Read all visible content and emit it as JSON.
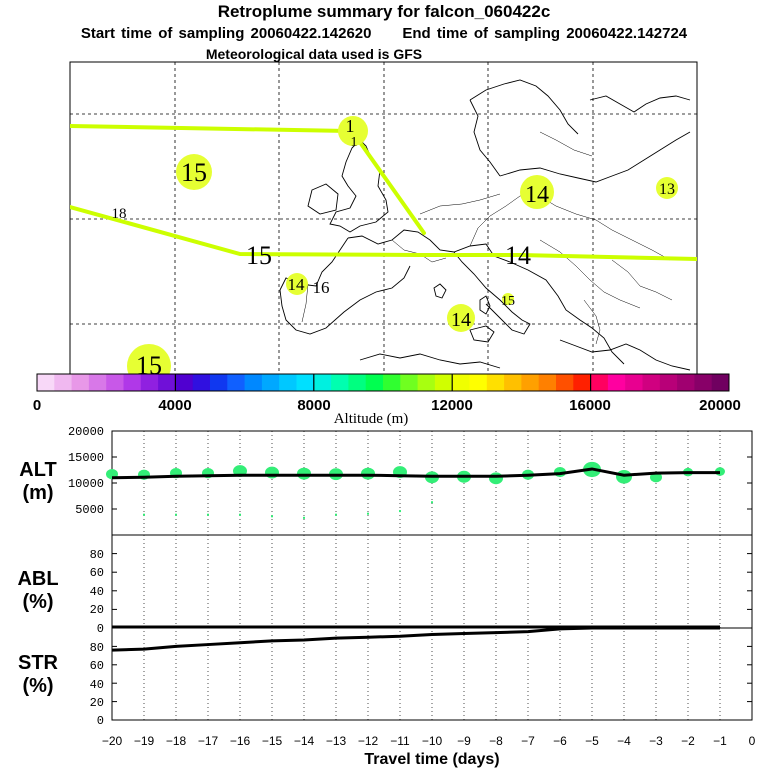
{
  "header": {
    "title": "Retroplume summary for falcon_060422c",
    "start_label": "Start time of sampling 20060422.142620",
    "end_label": "End time of sampling 20060422.142724",
    "met_label": "Meteorological data used is GFS"
  },
  "colors": {
    "plume": "#ccff00",
    "plume_dot": "#e6ff33",
    "alt_dot": "#33ee77",
    "line": "#000000"
  },
  "chart_data": [
    {
      "type": "map",
      "name": "retroplume-map",
      "region": "North Atlantic / Europe",
      "path_labels": [
        "15",
        "18",
        "15",
        "14",
        "14",
        "14",
        "16",
        "15",
        "14",
        "14",
        "13",
        "15",
        "1",
        "1"
      ],
      "colorbar": {
        "title": "Altitude (m)",
        "min": 0,
        "max": 20000,
        "tick_labels": [
          "0",
          "4000",
          "8000",
          "12000",
          "16000",
          "20000"
        ],
        "colors": [
          "#f8d8f8",
          "#f0b8f0",
          "#e898e8",
          "#d878e8",
          "#c858e8",
          "#b038e8",
          "#9020e0",
          "#7010d8",
          "#5000d0",
          "#3010e0",
          "#1038f0",
          "#1060ff",
          "#0088ff",
          "#00a8ff",
          "#00c8ff",
          "#00e0ff",
          "#00f0e0",
          "#00ffb0",
          "#00ff80",
          "#00ff50",
          "#30ff30",
          "#70ff20",
          "#a8ff10",
          "#d0ff00",
          "#f0ff00",
          "#ffff00",
          "#ffe000",
          "#ffc000",
          "#ffa000",
          "#ff8000",
          "#ff5000",
          "#ff2000",
          "#ff0060",
          "#ff00a0",
          "#e80090",
          "#d00080",
          "#b80078",
          "#a00070",
          "#880068",
          "#700060"
        ]
      }
    },
    {
      "type": "line+scatter",
      "name": "ALT",
      "ylabel": "ALT (m)",
      "ylim": [
        0,
        20000
      ],
      "yticks": [
        "20000",
        "15000",
        "10000",
        "5000"
      ],
      "x": [
        -20,
        -19,
        -18,
        -17,
        -16,
        -15,
        -14,
        -13,
        -12,
        -11,
        -10,
        -9,
        -8,
        -7,
        -6,
        -5,
        -4,
        -3,
        -2,
        -1
      ],
      "series": [
        {
          "name": "mean altitude",
          "values": [
            11000,
            11100,
            11300,
            11400,
            11500,
            11500,
            11500,
            11500,
            11500,
            11400,
            11300,
            11300,
            11300,
            11500,
            11800,
            12700,
            11500,
            11900,
            12000,
            12000
          ]
        },
        {
          "name": "altitude dots",
          "values": [
            11700,
            11600,
            11900,
            11900,
            12300,
            12000,
            11800,
            11700,
            11800,
            12100,
            11100,
            11200,
            10900,
            11600,
            12100,
            12600,
            11200,
            11100,
            12100,
            12200
          ],
          "sizes": [
            6,
            6,
            6,
            6,
            7,
            7,
            7,
            7,
            7,
            7,
            7,
            7,
            7,
            6,
            6,
            9,
            8,
            6,
            5,
            5
          ]
        },
        {
          "name": "low altitude dots",
          "values": [
            3900,
            3900,
            3900,
            3900,
            3600,
            3300,
            3900,
            4100,
            4600,
            6300
          ],
          "x": [
            -19,
            -18,
            -17,
            -16,
            -15,
            -14,
            -13,
            -12,
            -11,
            -10
          ]
        }
      ]
    },
    {
      "type": "line",
      "name": "ABL",
      "ylabel": "ABL (%)",
      "ylim": [
        0,
        95
      ],
      "yticks": [
        "80",
        "60",
        "40",
        "20",
        "0"
      ],
      "x": [
        -20,
        -19,
        -18,
        -17,
        -16,
        -15,
        -14,
        -13,
        -12,
        -11,
        -10,
        -9,
        -8,
        -7,
        -6,
        -5,
        -4,
        -3,
        -2,
        -1
      ],
      "values": [
        0,
        0,
        0,
        0,
        0,
        0,
        0,
        0,
        0,
        0,
        0,
        0,
        0,
        0,
        0,
        0,
        0,
        0,
        0,
        0
      ]
    },
    {
      "type": "line",
      "name": "STR",
      "ylabel": "STR (%)",
      "ylim": [
        0,
        95
      ],
      "yticks": [
        "80",
        "60",
        "40",
        "20",
        "0"
      ],
      "x": [
        -20,
        -19,
        -18,
        -17,
        -16,
        -15,
        -14,
        -13,
        -12,
        -11,
        -10,
        -9,
        -8,
        -7,
        -6,
        -5,
        -4,
        -3,
        -2,
        -1
      ],
      "values": [
        76,
        77,
        80,
        82,
        84,
        86,
        87,
        89,
        90,
        91,
        93,
        94,
        95,
        96,
        99,
        100,
        100,
        100,
        100,
        100
      ]
    }
  ],
  "xaxis": {
    "label": "Travel time (days)",
    "ticks": [
      "−20",
      "−19",
      "−18",
      "−17",
      "−16",
      "−15",
      "−14",
      "−13",
      "−12",
      "−11",
      "−10",
      "−9",
      "−8",
      "−7",
      "−6",
      "−5",
      "−4",
      "−3",
      "−2",
      "−1",
      "0"
    ],
    "range": [
      -20,
      0
    ]
  },
  "panel_labels": {
    "alt": [
      "ALT",
      "(m)"
    ],
    "abl": [
      "ABL",
      "(%)"
    ],
    "str": [
      "STR",
      "(%)"
    ]
  }
}
